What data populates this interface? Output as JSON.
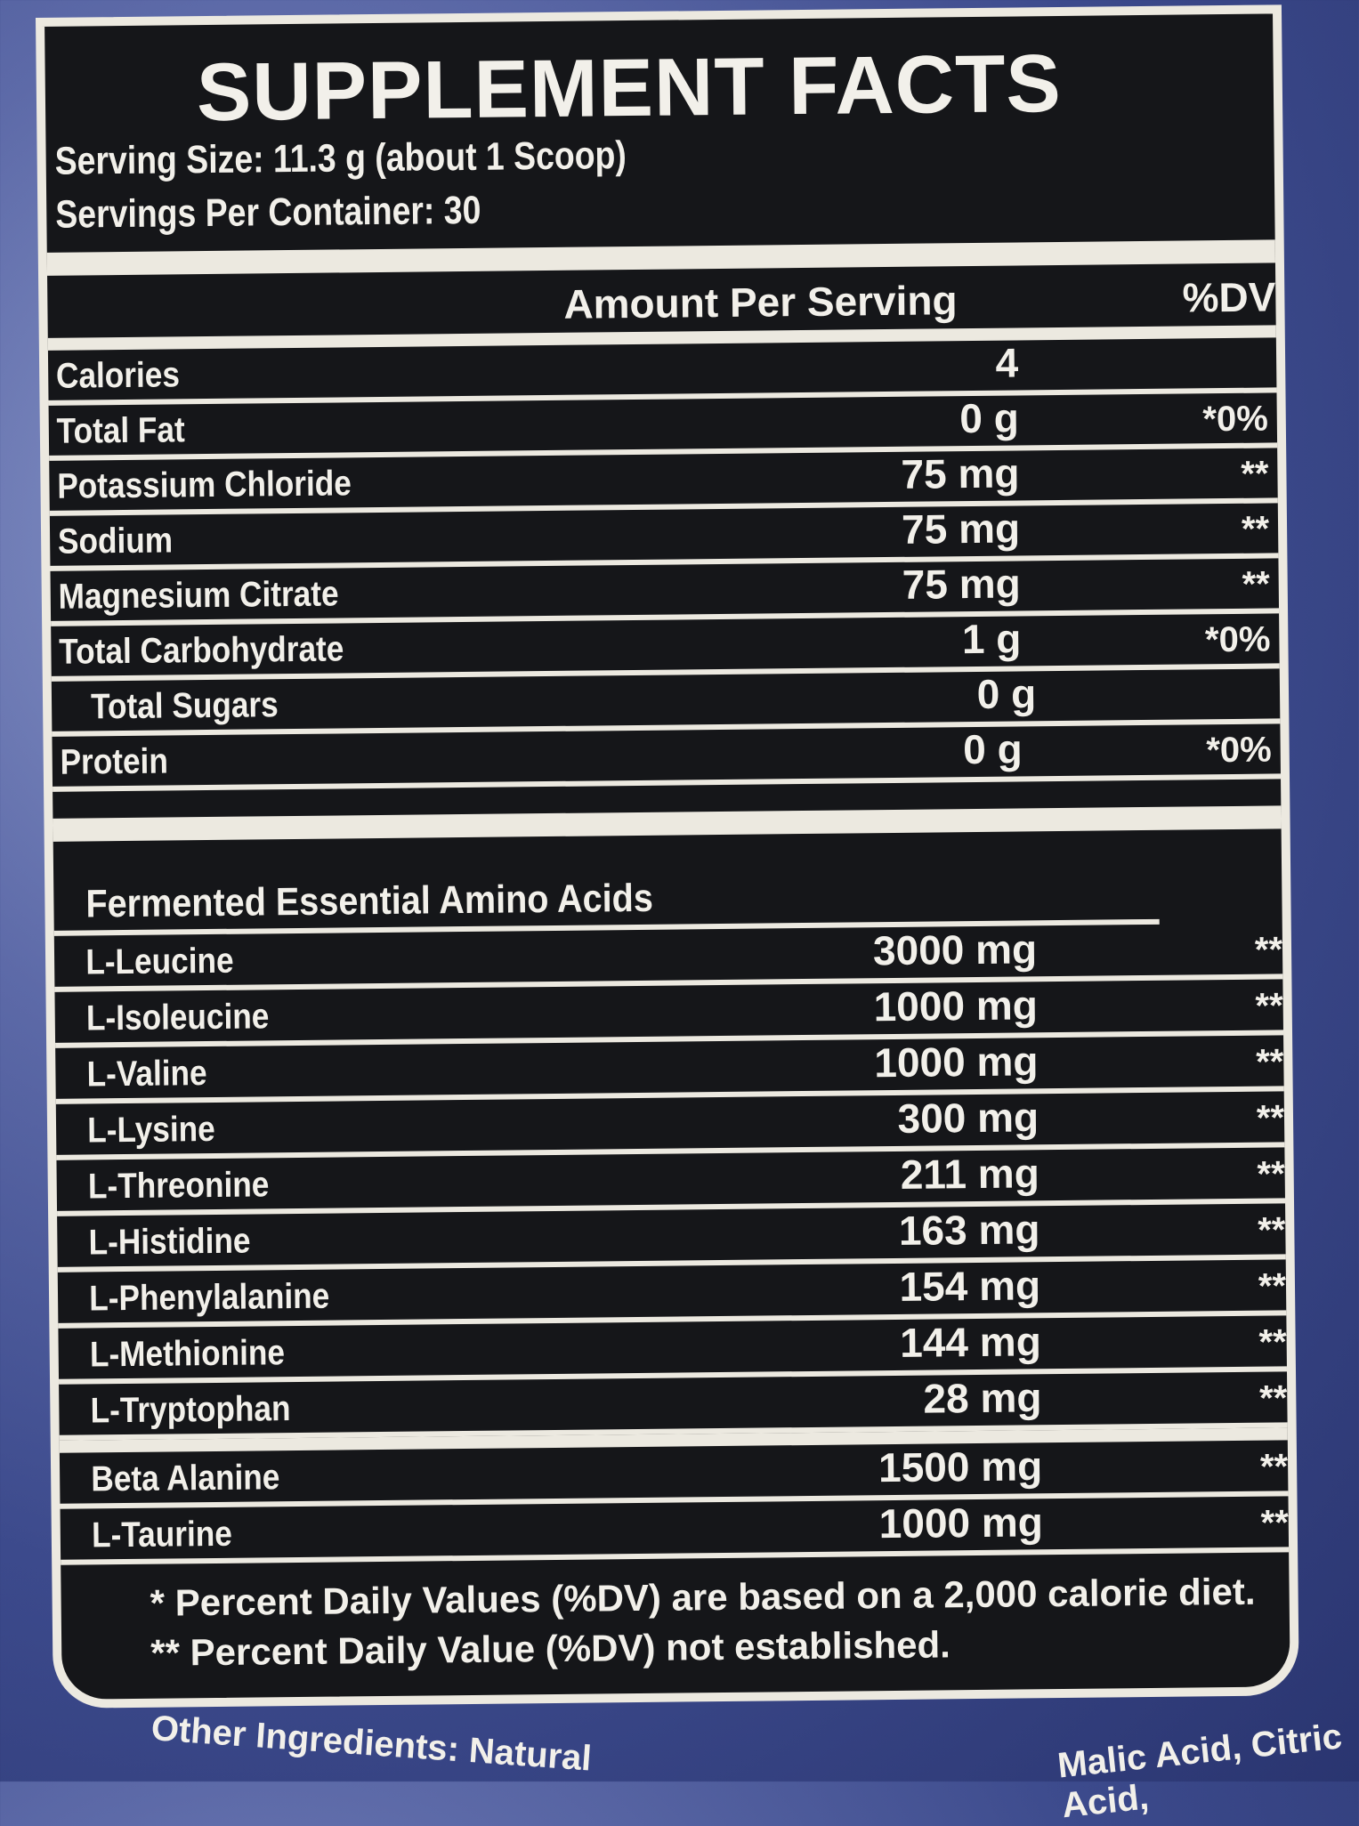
{
  "title": "SUPPLEMENT FACTS",
  "serving_size": "Serving Size: 11.3 g (about 1 Scoop)",
  "servings_per_container": "Servings Per Container: 30",
  "header": {
    "amount": "Amount Per Serving",
    "dv": "%DV"
  },
  "nutrients": [
    {
      "name": "Calories",
      "amount": "4",
      "dv": ""
    },
    {
      "name": "Total Fat",
      "amount": "0 g",
      "dv": "*0%"
    },
    {
      "name": "Potassium Chloride",
      "amount": "75 mg",
      "dv": "**"
    },
    {
      "name": "Sodium",
      "amount": "75 mg",
      "dv": "**"
    },
    {
      "name": "Magnesium Citrate",
      "amount": "75 mg",
      "dv": "**"
    },
    {
      "name": "Total Carbohydrate",
      "amount": "1 g",
      "dv": "*0%"
    },
    {
      "name": "Total Sugars",
      "amount": "0 g",
      "dv": ""
    },
    {
      "name": "Protein",
      "amount": "0 g",
      "dv": "*0%"
    }
  ],
  "amino_section": "Fermented Essential Amino Acids",
  "aminos": [
    {
      "name": "L-Leucine",
      "amount": "3000 mg",
      "dv": "**"
    },
    {
      "name": "L-Isoleucine",
      "amount": "1000 mg",
      "dv": "**"
    },
    {
      "name": "L-Valine",
      "amount": "1000 mg",
      "dv": "**"
    },
    {
      "name": "L-Lysine",
      "amount": "300 mg",
      "dv": "**"
    },
    {
      "name": "L-Threonine",
      "amount": "211 mg",
      "dv": "**"
    },
    {
      "name": "L-Histidine",
      "amount": "163 mg",
      "dv": "**"
    },
    {
      "name": "L-Phenylalanine",
      "amount": "154 mg",
      "dv": "**"
    },
    {
      "name": "L-Methionine",
      "amount": "144 mg",
      "dv": "**"
    },
    {
      "name": "L-Tryptophan",
      "amount": "28 mg",
      "dv": "**"
    }
  ],
  "others": [
    {
      "name": "Beta Alanine",
      "amount": "1500 mg",
      "dv": "**"
    },
    {
      "name": "L-Taurine",
      "amount": "1000 mg",
      "dv": "**"
    }
  ],
  "footnotes": [
    "* Percent Daily Values (%DV) are based on a 2,000 calorie diet.",
    "** Percent Daily Value (%DV) not established."
  ],
  "other_ingredients": "Other Ingredients: Natural",
  "other_ingredients_tail": "Malic Acid, Citric Acid,"
}
